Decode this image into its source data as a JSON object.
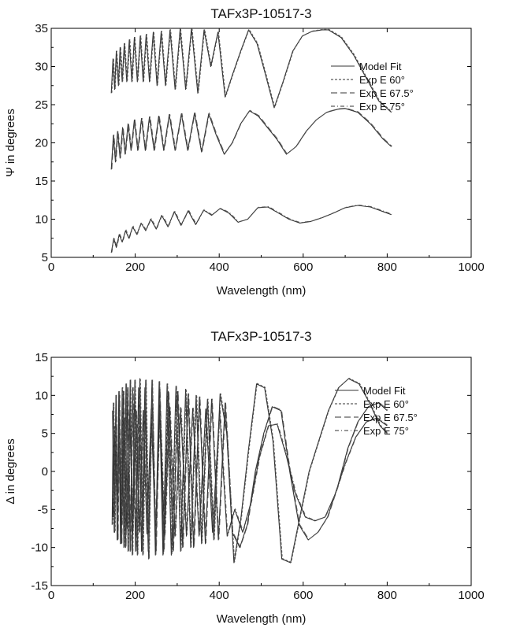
{
  "chart_data": [
    {
      "type": "line",
      "title": "TAFx3P-10517-3",
      "xlabel": "Wavelength (nm)",
      "ylabel": "Ψ in degrees",
      "xlim": [
        0,
        1000
      ],
      "ylim": [
        5,
        35
      ],
      "xticks": [
        0,
        200,
        400,
        600,
        800,
        1000
      ],
      "yticks": [
        5,
        10,
        15,
        20,
        25,
        30,
        35
      ],
      "xtick_labels": [
        "0",
        "200",
        "400",
        "600",
        "800",
        "1000"
      ],
      "ytick_labels": [
        "5",
        "10",
        "15",
        "20",
        "25",
        "30",
        "35"
      ],
      "grid": false,
      "legend_position": "right",
      "legend": [
        "Model Fit",
        "Exp E 60°",
        "Exp E 67.5°",
        "Exp E 75°"
      ],
      "series": [
        {
          "name": "Model Fit",
          "angle_deg": 60,
          "x": [
            143,
            147,
            151,
            155,
            160,
            164,
            169,
            174,
            180,
            186,
            192,
            198,
            205,
            212,
            219,
            226,
            234,
            243,
            252,
            262,
            272,
            283,
            295,
            307,
            320,
            334,
            349,
            364,
            380,
            397,
            414,
            432,
            451,
            470,
            490,
            510,
            531,
            552,
            575,
            598,
            621,
            645,
            660,
            690,
            720,
            750,
            780,
            810
          ],
          "y": [
            26.5,
            31,
            27,
            32,
            27.5,
            32.5,
            28,
            33,
            28,
            33.5,
            28,
            33.8,
            28,
            34,
            28,
            34.2,
            28,
            34.5,
            27.5,
            34.6,
            27.5,
            34.8,
            27,
            34.9,
            27,
            35,
            26.5,
            34.8,
            30,
            34.5,
            26,
            29,
            32,
            34.8,
            33,
            29,
            24.6,
            28,
            32,
            34,
            34.6,
            34.8,
            34.8,
            33.8,
            31.5,
            28.5,
            25.5,
            24.0
          ]
        },
        {
          "name": "Model Fit",
          "angle_deg": 67.5,
          "x": [
            143,
            148,
            153,
            158,
            164,
            170,
            176,
            183,
            190,
            198,
            206,
            215,
            224,
            234,
            245,
            256,
            268,
            281,
            295,
            310,
            325,
            341,
            358,
            375,
            393,
            412,
            431,
            451,
            472,
            493,
            515,
            537,
            560,
            583,
            607,
            631,
            656,
            682,
            700,
            730,
            760,
            790,
            810
          ],
          "y": [
            16.5,
            21,
            17.5,
            21.5,
            18,
            22,
            18.5,
            22.5,
            19,
            23,
            19,
            23.2,
            19,
            23.4,
            19,
            23.5,
            19,
            23.7,
            19,
            23.8,
            19,
            23.9,
            18.8,
            23.8,
            21,
            18.5,
            20,
            22.5,
            24.2,
            23.5,
            22,
            20.5,
            18.5,
            19.5,
            21.5,
            23,
            24,
            24.4,
            24.5,
            24,
            22.5,
            20.5,
            19.5
          ]
        },
        {
          "name": "Model Fit",
          "angle_deg": 75,
          "x": [
            143,
            149,
            155,
            162,
            169,
            177,
            185,
            194,
            204,
            214,
            225,
            237,
            250,
            263,
            278,
            293,
            309,
            326,
            344,
            363,
            382,
            402,
            423,
            445,
            468,
            492,
            516,
            541,
            566,
            592,
            618,
            645,
            672,
            700,
            730,
            760,
            790,
            810
          ],
          "y": [
            5.6,
            7.5,
            6.3,
            8,
            7,
            8.5,
            7.5,
            9,
            8,
            9.5,
            8.5,
            10,
            8.7,
            10.5,
            9,
            11,
            9.2,
            11.1,
            9.3,
            11.2,
            10.5,
            11.4,
            10.8,
            9.6,
            10,
            11.5,
            11.6,
            10.8,
            10,
            9.5,
            9.7,
            10.2,
            10.8,
            11.5,
            11.8,
            11.6,
            11.0,
            10.6
          ]
        }
      ]
    },
    {
      "type": "line",
      "title": "TAFx3P-10517-3",
      "xlabel": "Wavelength (nm)",
      "ylabel": "Δ in degrees",
      "xlim": [
        0,
        1000
      ],
      "ylim": [
        -15,
        15
      ],
      "xticks": [
        0,
        200,
        400,
        600,
        800,
        1000
      ],
      "yticks": [
        -15,
        -10,
        -5,
        0,
        5,
        10,
        15
      ],
      "xtick_labels": [
        "0",
        "200",
        "400",
        "600",
        "800",
        "1000"
      ],
      "ytick_labels": [
        "-15",
        "-10",
        "-5",
        "0",
        "5",
        "10",
        "15"
      ],
      "grid": false,
      "legend_position": "right",
      "legend": [
        "Model Fit",
        "Exp E 60°",
        "Exp E 67.5°",
        "Exp E 75°"
      ],
      "series": [
        {
          "name": "Model Fit",
          "angle_deg": 60,
          "x": [
            145,
            148,
            151,
            154,
            157,
            161,
            165,
            169,
            173,
            178,
            183,
            188,
            193,
            199,
            205,
            211,
            218,
            225,
            232,
            240,
            248,
            257,
            266,
            276,
            286,
            297,
            308,
            320,
            332,
            345,
            358,
            372,
            387,
            402,
            418,
            435,
            452,
            470,
            489,
            508,
            528,
            549,
            570,
            592,
            614,
            637,
            660,
            684,
            708,
            733,
            758,
            783,
            800
          ],
          "y": [
            -7,
            9,
            -8,
            10,
            -9,
            10.5,
            -9.5,
            11,
            -10,
            11.5,
            -10.5,
            12,
            -11,
            12,
            -11,
            12.2,
            -11,
            12,
            -11.5,
            12,
            -11,
            11.8,
            -11,
            11.5,
            -11,
            11.2,
            -10.5,
            10.8,
            -10,
            10,
            -9.5,
            9.5,
            -9,
            10.2,
            5,
            -12,
            -6,
            3,
            11.5,
            11,
            4,
            -11.5,
            -12,
            -6,
            0,
            4,
            8,
            11,
            12.2,
            11.5,
            9,
            6,
            5
          ]
        },
        {
          "name": "Model Fit",
          "angle_deg": 67.5,
          "x": [
            146,
            150,
            154,
            158,
            162,
            167,
            172,
            177,
            182,
            188,
            194,
            201,
            208,
            215,
            223,
            231,
            240,
            249,
            258,
            268,
            279,
            290,
            301,
            313,
            326,
            339,
            353,
            367,
            382,
            398,
            414,
            431,
            449,
            467,
            486,
            506,
            526,
            547,
            568,
            590,
            612,
            635,
            658,
            682,
            706,
            730,
            755,
            780,
            800
          ],
          "y": [
            8,
            -8,
            9,
            -9,
            10,
            -9.5,
            10.5,
            -10,
            11,
            -10.5,
            11,
            -10.5,
            11,
            -10.5,
            11,
            -10.5,
            11,
            -10.5,
            10.8,
            -10.5,
            10.5,
            -10.5,
            10.5,
            -10,
            10.2,
            -10,
            9.8,
            -9.5,
            9.5,
            -9,
            9,
            -8,
            -10,
            -7,
            0,
            5,
            8.5,
            8,
            0,
            -7,
            -9,
            -8,
            -6,
            -2,
            3,
            6.5,
            8.5,
            9,
            8
          ]
        },
        {
          "name": "Model Fit",
          "angle_deg": 75,
          "x": [
            147,
            152,
            157,
            162,
            168,
            174,
            180,
            187,
            194,
            202,
            210,
            219,
            228,
            238,
            248,
            259,
            270,
            282,
            295,
            308,
            322,
            337,
            352,
            368,
            384,
            401,
            419,
            437,
            456,
            476,
            496,
            517,
            538,
            560,
            582,
            605,
            628,
            652,
            676,
            700,
            725,
            750,
            775,
            800
          ],
          "y": [
            -6,
            6,
            -6.5,
            6.5,
            -7,
            7,
            -7.5,
            7.5,
            -8,
            8,
            -8,
            8,
            -8.2,
            8.2,
            -8.3,
            8.3,
            -8.5,
            8.5,
            -8.5,
            8.4,
            -8.5,
            8.3,
            -8.5,
            8.2,
            -8,
            8,
            -8.5,
            -5,
            -8,
            -4,
            2,
            6,
            6.2,
            2,
            -3,
            -6,
            -6.5,
            -6,
            -3,
            1,
            4.5,
            6.5,
            7,
            6
          ]
        }
      ]
    }
  ]
}
